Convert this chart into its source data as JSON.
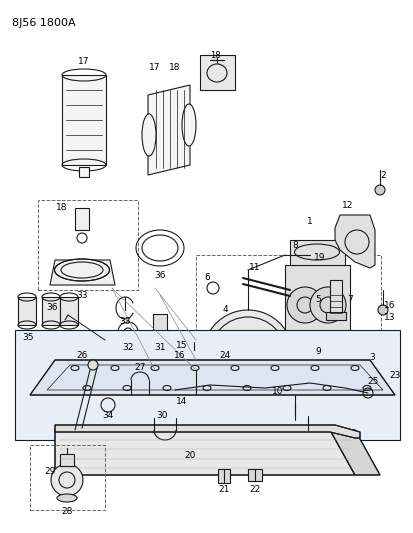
{
  "title": "8J56 1800A",
  "bg_color": "#ffffff",
  "line_color": "#1a1a1a",
  "dashed_box_color": "#666666",
  "title_fontsize": 8,
  "label_fontsize": 6.5,
  "fig_width": 4.13,
  "fig_height": 5.33,
  "dpi": 100
}
